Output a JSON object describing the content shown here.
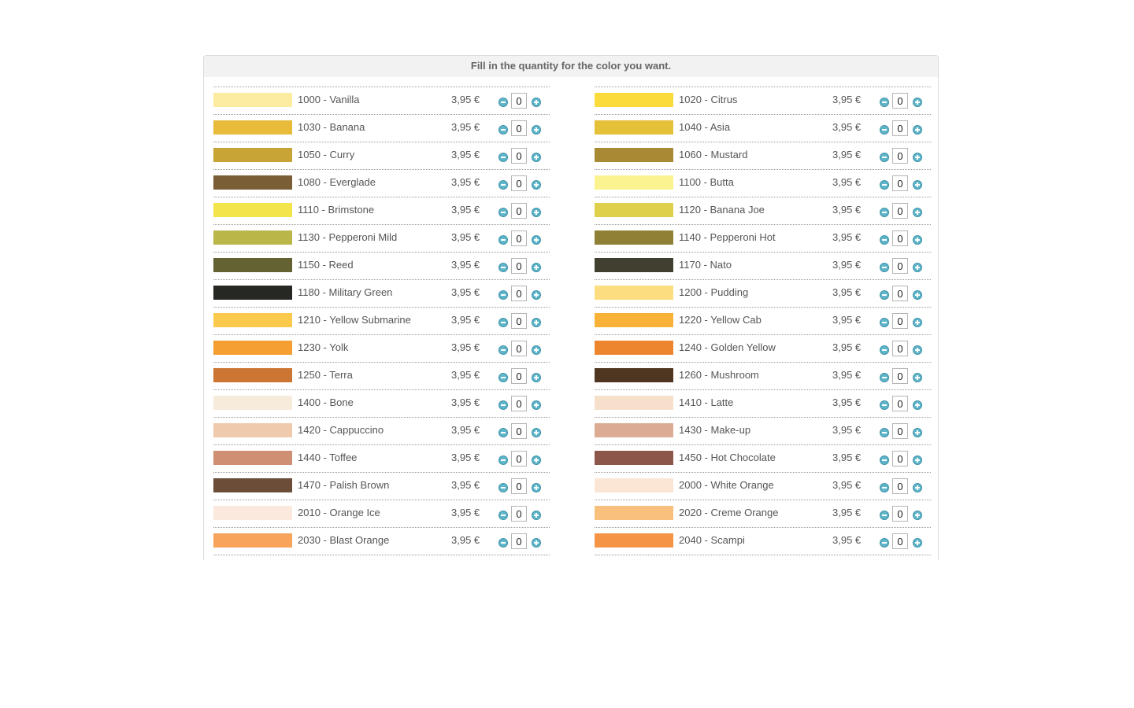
{
  "header": {
    "title": "Fill in the quantity for the color you want."
  },
  "columns": [
    {
      "items": [
        {
          "name": "1000 - Vanilla",
          "price": "3,95 €",
          "qty": "0",
          "color": "#fcec9f"
        },
        {
          "name": "1030 - Banana",
          "price": "3,95 €",
          "qty": "0",
          "color": "#e8bc3a"
        },
        {
          "name": "1050 - Curry",
          "price": "3,95 €",
          "qty": "0",
          "color": "#c8a336"
        },
        {
          "name": "1080 - Everglade",
          "price": "3,95 €",
          "qty": "0",
          "color": "#7a5f36"
        },
        {
          "name": "1110 - Brimstone",
          "price": "3,95 €",
          "qty": "0",
          "color": "#f4e44c"
        },
        {
          "name": "1130 - Pepperoni Mild",
          "price": "3,95 €",
          "qty": "0",
          "color": "#bbb648"
        },
        {
          "name": "1150 - Reed",
          "price": "3,95 €",
          "qty": "0",
          "color": "#646232"
        },
        {
          "name": "1180 - Military Green",
          "price": "3,95 €",
          "qty": "0",
          "color": "#262823"
        },
        {
          "name": "1210 - Yellow Submarine",
          "price": "3,95 €",
          "qty": "0",
          "color": "#fbc94c"
        },
        {
          "name": "1230 - Yolk",
          "price": "3,95 €",
          "qty": "0",
          "color": "#f59e31"
        },
        {
          "name": "1250 - Terra",
          "price": "3,95 €",
          "qty": "0",
          "color": "#cd7634"
        },
        {
          "name": "1400 - Bone",
          "price": "3,95 €",
          "qty": "0",
          "color": "#f7ebdc"
        },
        {
          "name": "1420 - Cappuccino",
          "price": "3,95 €",
          "qty": "0",
          "color": "#efcaad"
        },
        {
          "name": "1440 - Toffee",
          "price": "3,95 €",
          "qty": "0",
          "color": "#cf8f72"
        },
        {
          "name": "1470 - Palish Brown",
          "price": "3,95 €",
          "qty": "0",
          "color": "#6c4d38"
        },
        {
          "name": "2010 - Orange Ice",
          "price": "3,95 €",
          "qty": "0",
          "color": "#fbe9dd"
        },
        {
          "name": "2030 - Blast Orange",
          "price": "3,95 €",
          "qty": "0",
          "color": "#f8a45b"
        }
      ]
    },
    {
      "items": [
        {
          "name": "1020 - Citrus",
          "price": "3,95 €",
          "qty": "0",
          "color": "#fbdb3c"
        },
        {
          "name": "1040 - Asia",
          "price": "3,95 €",
          "qty": "0",
          "color": "#e5c039"
        },
        {
          "name": "1060 - Mustard",
          "price": "3,95 €",
          "qty": "0",
          "color": "#a78a33"
        },
        {
          "name": "1100 - Butta",
          "price": "3,95 €",
          "qty": "0",
          "color": "#fbf38f"
        },
        {
          "name": "1120 - Banana Joe",
          "price": "3,95 €",
          "qty": "0",
          "color": "#dfd04b"
        },
        {
          "name": "1140 - Pepperoni Hot",
          "price": "3,95 €",
          "qty": "0",
          "color": "#8e8136"
        },
        {
          "name": "1170 - Nato",
          "price": "3,95 €",
          "qty": "0",
          "color": "#414030"
        },
        {
          "name": "1200 - Pudding",
          "price": "3,95 €",
          "qty": "0",
          "color": "#fcdd80"
        },
        {
          "name": "1220 - Yellow Cab",
          "price": "3,95 €",
          "qty": "0",
          "color": "#f8b237"
        },
        {
          "name": "1240 - Golden Yellow",
          "price": "3,95 €",
          "qty": "0",
          "color": "#ed852f"
        },
        {
          "name": "1260 - Mushroom",
          "price": "3,95 €",
          "qty": "0",
          "color": "#4e3620"
        },
        {
          "name": "1410 - Latte",
          "price": "3,95 €",
          "qty": "0",
          "color": "#f6dfcb"
        },
        {
          "name": "1430 - Make-up",
          "price": "3,95 €",
          "qty": "0",
          "color": "#dcab94"
        },
        {
          "name": "1450 - Hot Chocolate",
          "price": "3,95 €",
          "qty": "0",
          "color": "#8c574a"
        },
        {
          "name": "2000 - White Orange",
          "price": "3,95 €",
          "qty": "0",
          "color": "#fbe6d5"
        },
        {
          "name": "2020 - Creme Orange",
          "price": "3,95 €",
          "qty": "0",
          "color": "#f8c07c"
        },
        {
          "name": "2040 - Scampi",
          "price": "3,95 €",
          "qty": "0",
          "color": "#f59444"
        }
      ]
    }
  ],
  "icons": {
    "minus": "minus-circle-icon",
    "plus": "plus-circle-icon"
  },
  "colors": {
    "accent": "#5fb5c9",
    "header_bg": "#f2f2f2"
  }
}
